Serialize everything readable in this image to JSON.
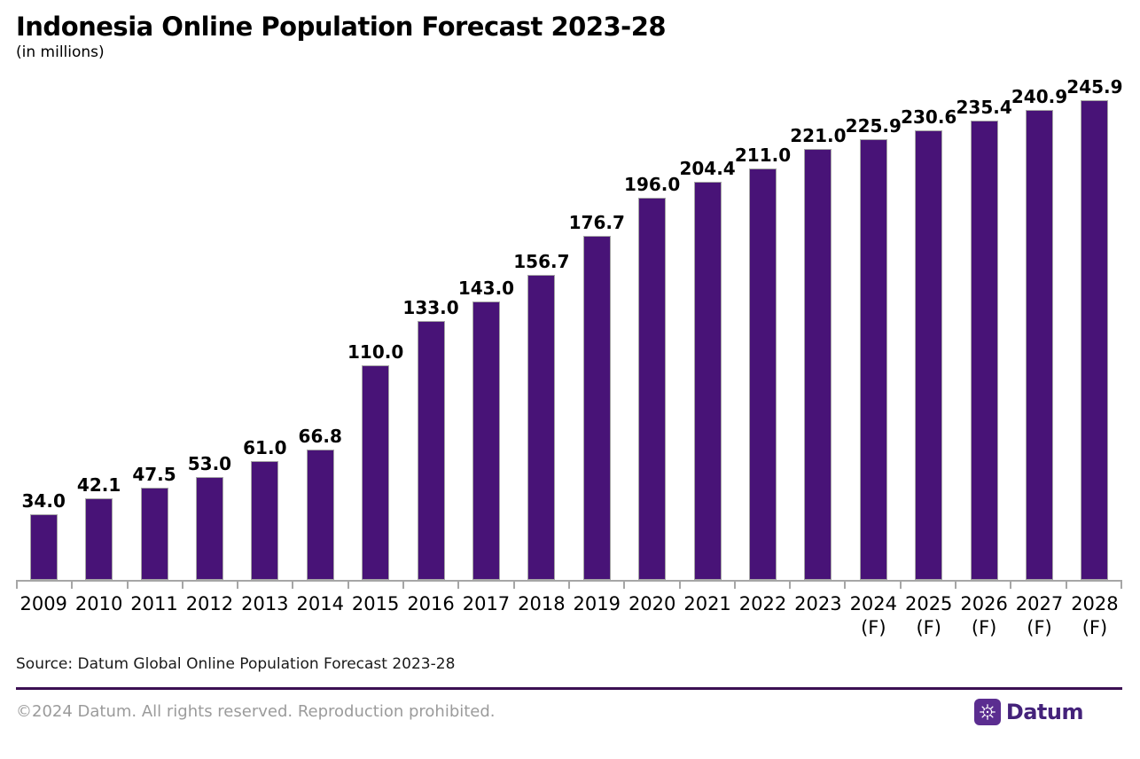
{
  "header": {
    "title": "Indonesia Online Population Forecast 2023-28",
    "subtitle": "(in millions)"
  },
  "chart_data": {
    "type": "bar",
    "title": "Indonesia Online Population Forecast 2023-28",
    "subtitle": "(in millions)",
    "unit": "millions",
    "categories": [
      {
        "year": "2009",
        "note": ""
      },
      {
        "year": "2010",
        "note": ""
      },
      {
        "year": "2011",
        "note": ""
      },
      {
        "year": "2012",
        "note": ""
      },
      {
        "year": "2013",
        "note": ""
      },
      {
        "year": "2014",
        "note": ""
      },
      {
        "year": "2015",
        "note": ""
      },
      {
        "year": "2016",
        "note": ""
      },
      {
        "year": "2017",
        "note": ""
      },
      {
        "year": "2018",
        "note": ""
      },
      {
        "year": "2019",
        "note": ""
      },
      {
        "year": "2020",
        "note": ""
      },
      {
        "year": "2021",
        "note": ""
      },
      {
        "year": "2022",
        "note": ""
      },
      {
        "year": "2023",
        "note": ""
      },
      {
        "year": "2024",
        "note": "(F)"
      },
      {
        "year": "2025",
        "note": "(F)"
      },
      {
        "year": "2026",
        "note": "(F)"
      },
      {
        "year": "2027",
        "note": "(F)"
      },
      {
        "year": "2028",
        "note": "(F)"
      }
    ],
    "values": [
      34.0,
      42.1,
      47.5,
      53.0,
      61.0,
      66.8,
      110.0,
      133.0,
      143.0,
      156.7,
      176.7,
      196.0,
      204.4,
      211.0,
      221.0,
      225.9,
      230.6,
      235.4,
      240.9,
      245.9
    ],
    "value_labels": [
      "34.0",
      "42.1",
      "47.5",
      "53.0",
      "61.0",
      "66.8",
      "110.0",
      "133.0",
      "143.0",
      "156.7",
      "176.7",
      "196.0",
      "204.4",
      "211.0",
      "221.0",
      "225.9",
      "230.6",
      "235.4",
      "240.9",
      "245.9"
    ],
    "xlabel": "",
    "ylabel": "",
    "ylim": [
      0,
      250
    ],
    "grid": false,
    "legend": "none",
    "bar_color": "#481377",
    "bar_border_color": "#a6a6a6",
    "axis_color": "#a6a6a6"
  },
  "footer": {
    "source": "Source: Datum Global Online Population Forecast 2023-28",
    "copyright": "©2024 Datum. All rights reserved. Reproduction prohibited.",
    "brand": "Datum"
  },
  "colors": {
    "bar": "#481377",
    "axis": "#a6a6a6",
    "divider": "#3c1053",
    "muted_text": "#9b9b9b",
    "brand_purple": "#44227a",
    "brand_icon_bg": "#5b2d90"
  }
}
